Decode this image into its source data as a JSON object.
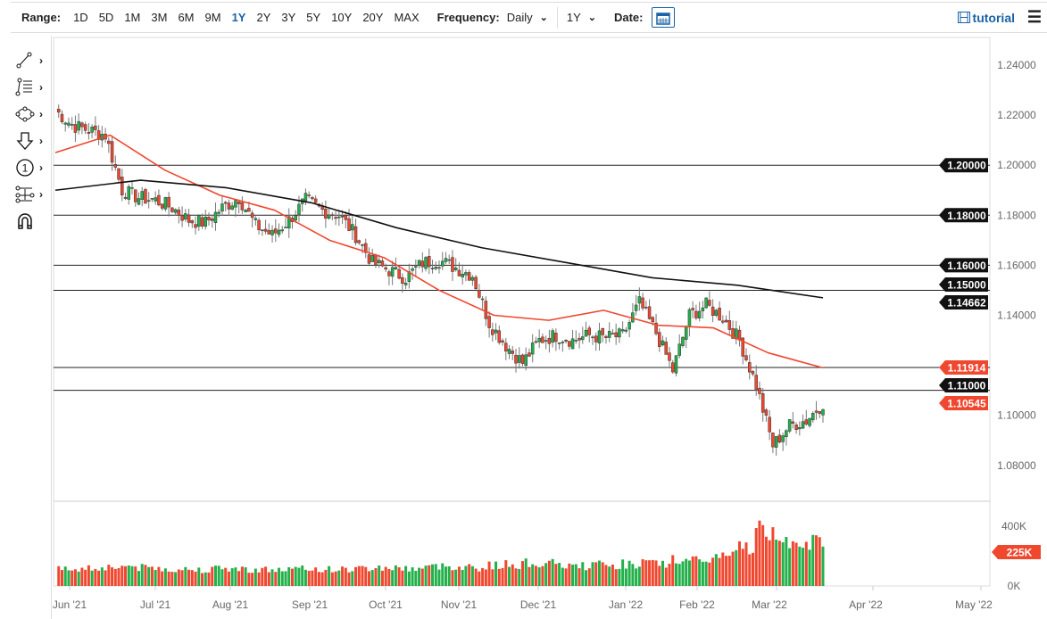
{
  "toolbar": {
    "range_label": "Range:",
    "ranges": [
      "1D",
      "5D",
      "1M",
      "3M",
      "6M",
      "9M",
      "1Y",
      "2Y",
      "3Y",
      "5Y",
      "10Y",
      "20Y",
      "MAX"
    ],
    "active_range": "1Y",
    "frequency_label": "Frequency:",
    "frequency_value": "Daily",
    "period_value": "1Y",
    "date_label": "Date:",
    "tutorial_label": "tutorial"
  },
  "tools": [
    "trendline-icon",
    "fibonacci-icon",
    "shapes-icon",
    "arrow-down-icon",
    "number-marker-icon",
    "measure-icon",
    "magnet-icon"
  ],
  "colors": {
    "up": "#22b04a",
    "down": "#f0472f",
    "ma50": "#f0472f",
    "ma200": "#111111",
    "accent": "#1a63a6"
  },
  "chart_data": {
    "type": "candlestick",
    "price_axis": {
      "ticks": [
        "1.24000",
        "1.22000",
        "1.20000",
        "1.18000",
        "1.16000",
        "1.14000",
        "1.10000",
        "1.08000"
      ],
      "range": [
        1.08,
        1.24
      ]
    },
    "x_ticks": [
      "Jun '21",
      "Jul '21",
      "Aug '21",
      "Sep '21",
      "Oct '21",
      "Nov '21",
      "Dec '21",
      "Jan '22",
      "Feb '22",
      "Mar '22",
      "Apr '22",
      "May '22"
    ],
    "weekly_closes": [
      1.222,
      1.216,
      1.214,
      1.212,
      1.19,
      1.187,
      1.186,
      1.183,
      1.178,
      1.177,
      1.183,
      1.187,
      1.176,
      1.172,
      1.178,
      1.186,
      1.182,
      1.18,
      1.172,
      1.161,
      1.158,
      1.155,
      1.161,
      1.162,
      1.159,
      1.156,
      1.137,
      1.128,
      1.121,
      1.13,
      1.132,
      1.13,
      1.132,
      1.131,
      1.132,
      1.145,
      1.133,
      1.118,
      1.14,
      1.144,
      1.139,
      1.13,
      1.112,
      1.088,
      1.096,
      1.098,
      1.105
    ],
    "ma50": [
      1.205,
      1.212,
      1.198,
      1.188,
      1.182,
      1.17,
      1.163,
      1.15,
      1.14,
      1.138,
      1.142,
      1.136,
      1.135,
      1.125,
      1.119
    ],
    "ma200": [
      1.19,
      1.194,
      1.191,
      1.185,
      1.175,
      1.167,
      1.161,
      1.155,
      1.152,
      1.147
    ],
    "levels": [
      {
        "value": 1.2,
        "label": "1.20000",
        "color": "#111111"
      },
      {
        "value": 1.18,
        "label": "1.18000",
        "color": "#111111"
      },
      {
        "value": 1.16,
        "label": "1.16000",
        "color": "#111111"
      },
      {
        "value": 1.15,
        "label": "1.15000",
        "color": "#111111"
      },
      {
        "value": 1.14662,
        "label": "1.14662",
        "color": "#111111",
        "noline": true
      },
      {
        "value": 1.11914,
        "label": "1.11914",
        "color": "#f0472f"
      },
      {
        "value": 1.11,
        "label": "1.11000",
        "color": "#111111"
      },
      {
        "value": 1.10545,
        "label": "1.10545",
        "color": "#f0472f",
        "noline": true
      }
    ],
    "volume": {
      "ticks": [
        "400K",
        "0K"
      ],
      "range": [
        0,
        450
      ],
      "last_label": "225K",
      "weekly_levels": [
        110,
        115,
        120,
        125,
        130,
        120,
        115,
        110,
        108,
        112,
        115,
        110,
        108,
        105,
        110,
        112,
        110,
        108,
        115,
        120,
        118,
        115,
        125,
        130,
        128,
        120,
        135,
        140,
        150,
        145,
        135,
        130,
        140,
        135,
        145,
        150,
        140,
        175,
        160,
        185,
        200,
        260,
        360,
        330,
        310,
        280,
        240
      ]
    }
  }
}
